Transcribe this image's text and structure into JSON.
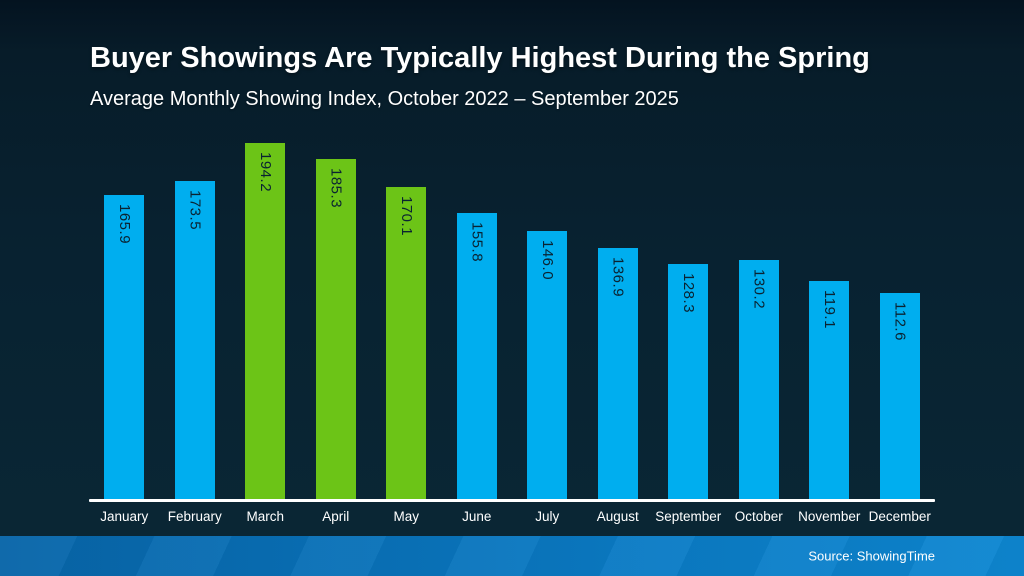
{
  "slide": {
    "title": "Buyer Showings Are Typically Highest During the Spring",
    "subtitle": "Average Monthly Showing Index, October 2022 – September 2025",
    "source": "Source: ShowingTime"
  },
  "colors": {
    "background_navy": "#082231",
    "bar_blue": "#00AEEF",
    "bar_green": "#6CC417",
    "bar_value_text": "#0A2332",
    "axis_line": "#FFFFFF",
    "footer_blue_left": "#0765A8",
    "footer_blue_right": "#0D87D1",
    "text": "#FFFFFF"
  },
  "chart_data": {
    "type": "bar",
    "title": "Buyer Showings Are Typically Highest During the Spring",
    "subtitle": "Average Monthly Showing Index, October 2022 – September 2025",
    "categories": [
      "January",
      "February",
      "March",
      "April",
      "May",
      "June",
      "July",
      "August",
      "September",
      "October",
      "November",
      "December"
    ],
    "values": [
      165.9,
      173.5,
      194.2,
      185.3,
      170.1,
      155.8,
      146.0,
      136.9,
      128.3,
      130.2,
      119.1,
      112.6
    ],
    "bar_colors": [
      "#00AEEF",
      "#00AEEF",
      "#6CC417",
      "#6CC417",
      "#6CC417",
      "#00AEEF",
      "#00AEEF",
      "#00AEEF",
      "#00AEEF",
      "#00AEEF",
      "#00AEEF",
      "#00AEEF"
    ],
    "highlighted_categories": [
      "March",
      "April",
      "May"
    ],
    "value_labels": [
      "165.9",
      "173.5",
      "194.2",
      "185.3",
      "170.1",
      "155.8",
      "146.0",
      "136.9",
      "128.3",
      "130.2",
      "119.1",
      "112.6"
    ],
    "xlabel": "",
    "ylabel": "",
    "ylim": [
      0,
      200
    ],
    "grid": false,
    "legend": "none",
    "source": "Source: ShowingTime"
  }
}
